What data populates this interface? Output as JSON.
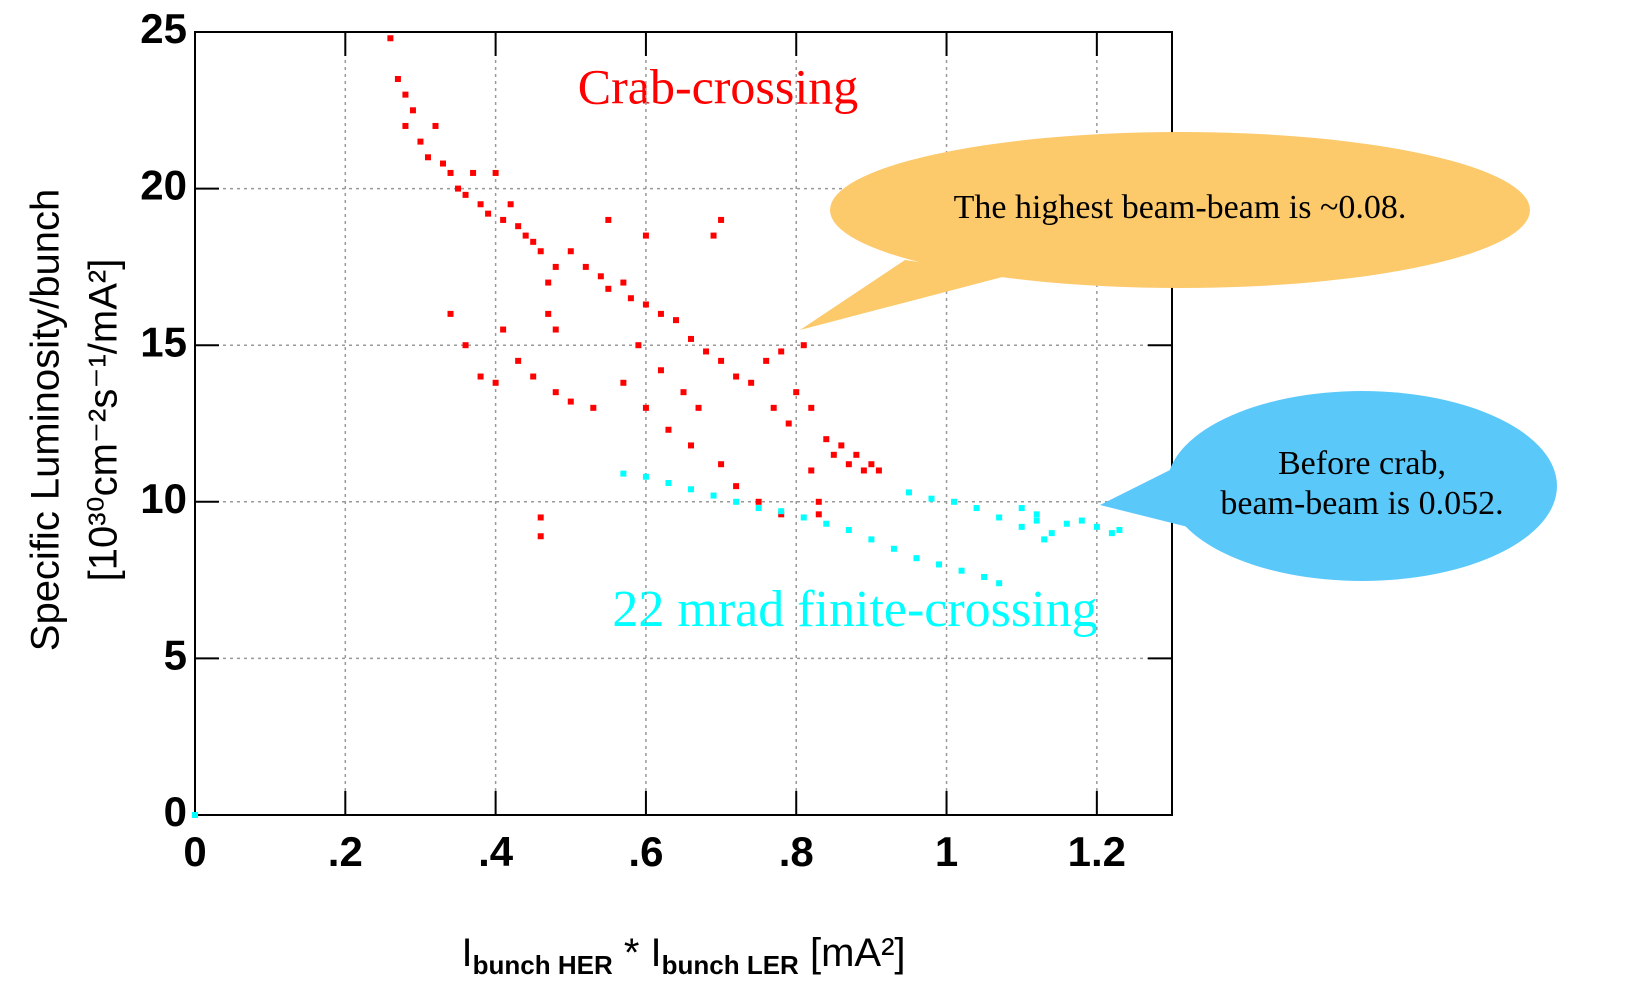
{
  "chart_data": {
    "type": "scatter",
    "x_label": [
      {
        "text": "I"
      },
      {
        "text": "bunch HER",
        "sub": true
      },
      {
        "text": " * I"
      },
      {
        "text": "bunch LER",
        "sub": true
      },
      {
        "text": " [mA²]"
      }
    ],
    "y_label": [
      "Specific Luminosity/bunch",
      "[10³⁰cm⁻²s⁻¹/mA²]"
    ],
    "xlim": [
      0,
      1.3
    ],
    "ylim": [
      0,
      25
    ],
    "xticks": [
      0,
      {
        "value": 0.2,
        "label": ".2"
      },
      {
        "value": 0.4,
        "label": ".4"
      },
      {
        "value": 0.6,
        "label": ".6"
      },
      {
        "value": 0.8,
        "label": ".8"
      },
      1,
      1.2
    ],
    "yticks": [
      0,
      5,
      10,
      15,
      20,
      25
    ],
    "grid": true,
    "annotations": [
      "Crab-crossing",
      "22 mrad finite-crossing"
    ],
    "callouts": [
      [
        "The highest beam-beam is ~0.08."
      ],
      [
        "Before crab,",
        "beam-beam is 0.052."
      ]
    ],
    "series": [
      {
        "color": "#ff0000",
        "x": [
          0.26,
          0.27,
          0.28,
          0.28,
          0.29,
          0.3,
          0.31,
          0.32,
          0.33,
          0.34,
          0.35,
          0.36,
          0.37,
          0.38,
          0.39,
          0.4,
          0.41,
          0.42,
          0.43,
          0.44,
          0.45,
          0.46,
          0.47,
          0.47,
          0.48,
          0.48,
          0.5,
          0.52,
          0.54,
          0.55,
          0.57,
          0.58,
          0.6,
          0.62,
          0.64,
          0.66,
          0.68,
          0.7,
          0.72,
          0.74,
          0.76,
          0.77,
          0.78,
          0.79,
          0.8,
          0.81,
          0.82,
          0.82,
          0.83,
          0.83,
          0.84,
          0.85,
          0.86,
          0.87,
          0.88,
          0.89,
          0.9,
          0.91,
          0.34,
          0.36,
          0.38,
          0.4,
          0.41,
          0.43,
          0.45,
          0.48,
          0.5,
          0.53,
          0.57,
          0.6,
          0.63,
          0.66,
          0.7,
          0.59,
          0.62,
          0.65,
          0.67,
          0.46,
          0.46,
          0.7,
          0.69,
          0.72,
          0.75,
          0.78,
          0.6,
          0.55
        ],
        "values": [
          24.8,
          23.5,
          23,
          22,
          22.5,
          21.5,
          21,
          22,
          20.8,
          20.5,
          20,
          19.8,
          20.5,
          19.5,
          19.2,
          20.5,
          19,
          19.5,
          18.8,
          18.5,
          18.3,
          18,
          17,
          16,
          15.5,
          17.5,
          18,
          17.5,
          17.2,
          16.8,
          17,
          16.5,
          16.3,
          16,
          15.8,
          15.2,
          14.8,
          14.5,
          14,
          13.8,
          14.5,
          13,
          14.8,
          12.5,
          13.5,
          15,
          13,
          11,
          10,
          9.6,
          12,
          11.5,
          11.8,
          11.2,
          11.5,
          11,
          11.2,
          11,
          16,
          15,
          14,
          13.8,
          15.5,
          14.5,
          14,
          13.5,
          13.2,
          13,
          13.8,
          13,
          12.3,
          11.8,
          11.2,
          15,
          14.2,
          13.5,
          13,
          9.5,
          8.9,
          19,
          18.5,
          10.5,
          10,
          9.6,
          18.5,
          19
        ]
      },
      {
        "color": "#00ffff",
        "x": [
          0,
          0.57,
          0.6,
          0.63,
          0.66,
          0.69,
          0.72,
          0.75,
          0.78,
          0.81,
          0.84,
          0.87,
          0.9,
          0.93,
          0.96,
          0.99,
          1.02,
          1.05,
          1.07,
          0.95,
          0.98,
          1.01,
          1.04,
          1.07,
          1.1,
          1.12,
          1.14,
          1.13,
          1.16,
          1.18,
          1.2,
          1.22,
          1.23,
          1.1,
          1.12
        ],
        "values": [
          0,
          10.9,
          10.8,
          10.6,
          10.4,
          10.2,
          10,
          9.8,
          9.7,
          9.5,
          9.3,
          9.1,
          8.8,
          8.5,
          8.2,
          8,
          7.8,
          7.6,
          7.4,
          10.3,
          10.1,
          10,
          9.8,
          9.5,
          9.2,
          9.4,
          9,
          8.8,
          9.3,
          9.4,
          9.2,
          9,
          9.1,
          9.8,
          9.6
        ]
      }
    ]
  }
}
